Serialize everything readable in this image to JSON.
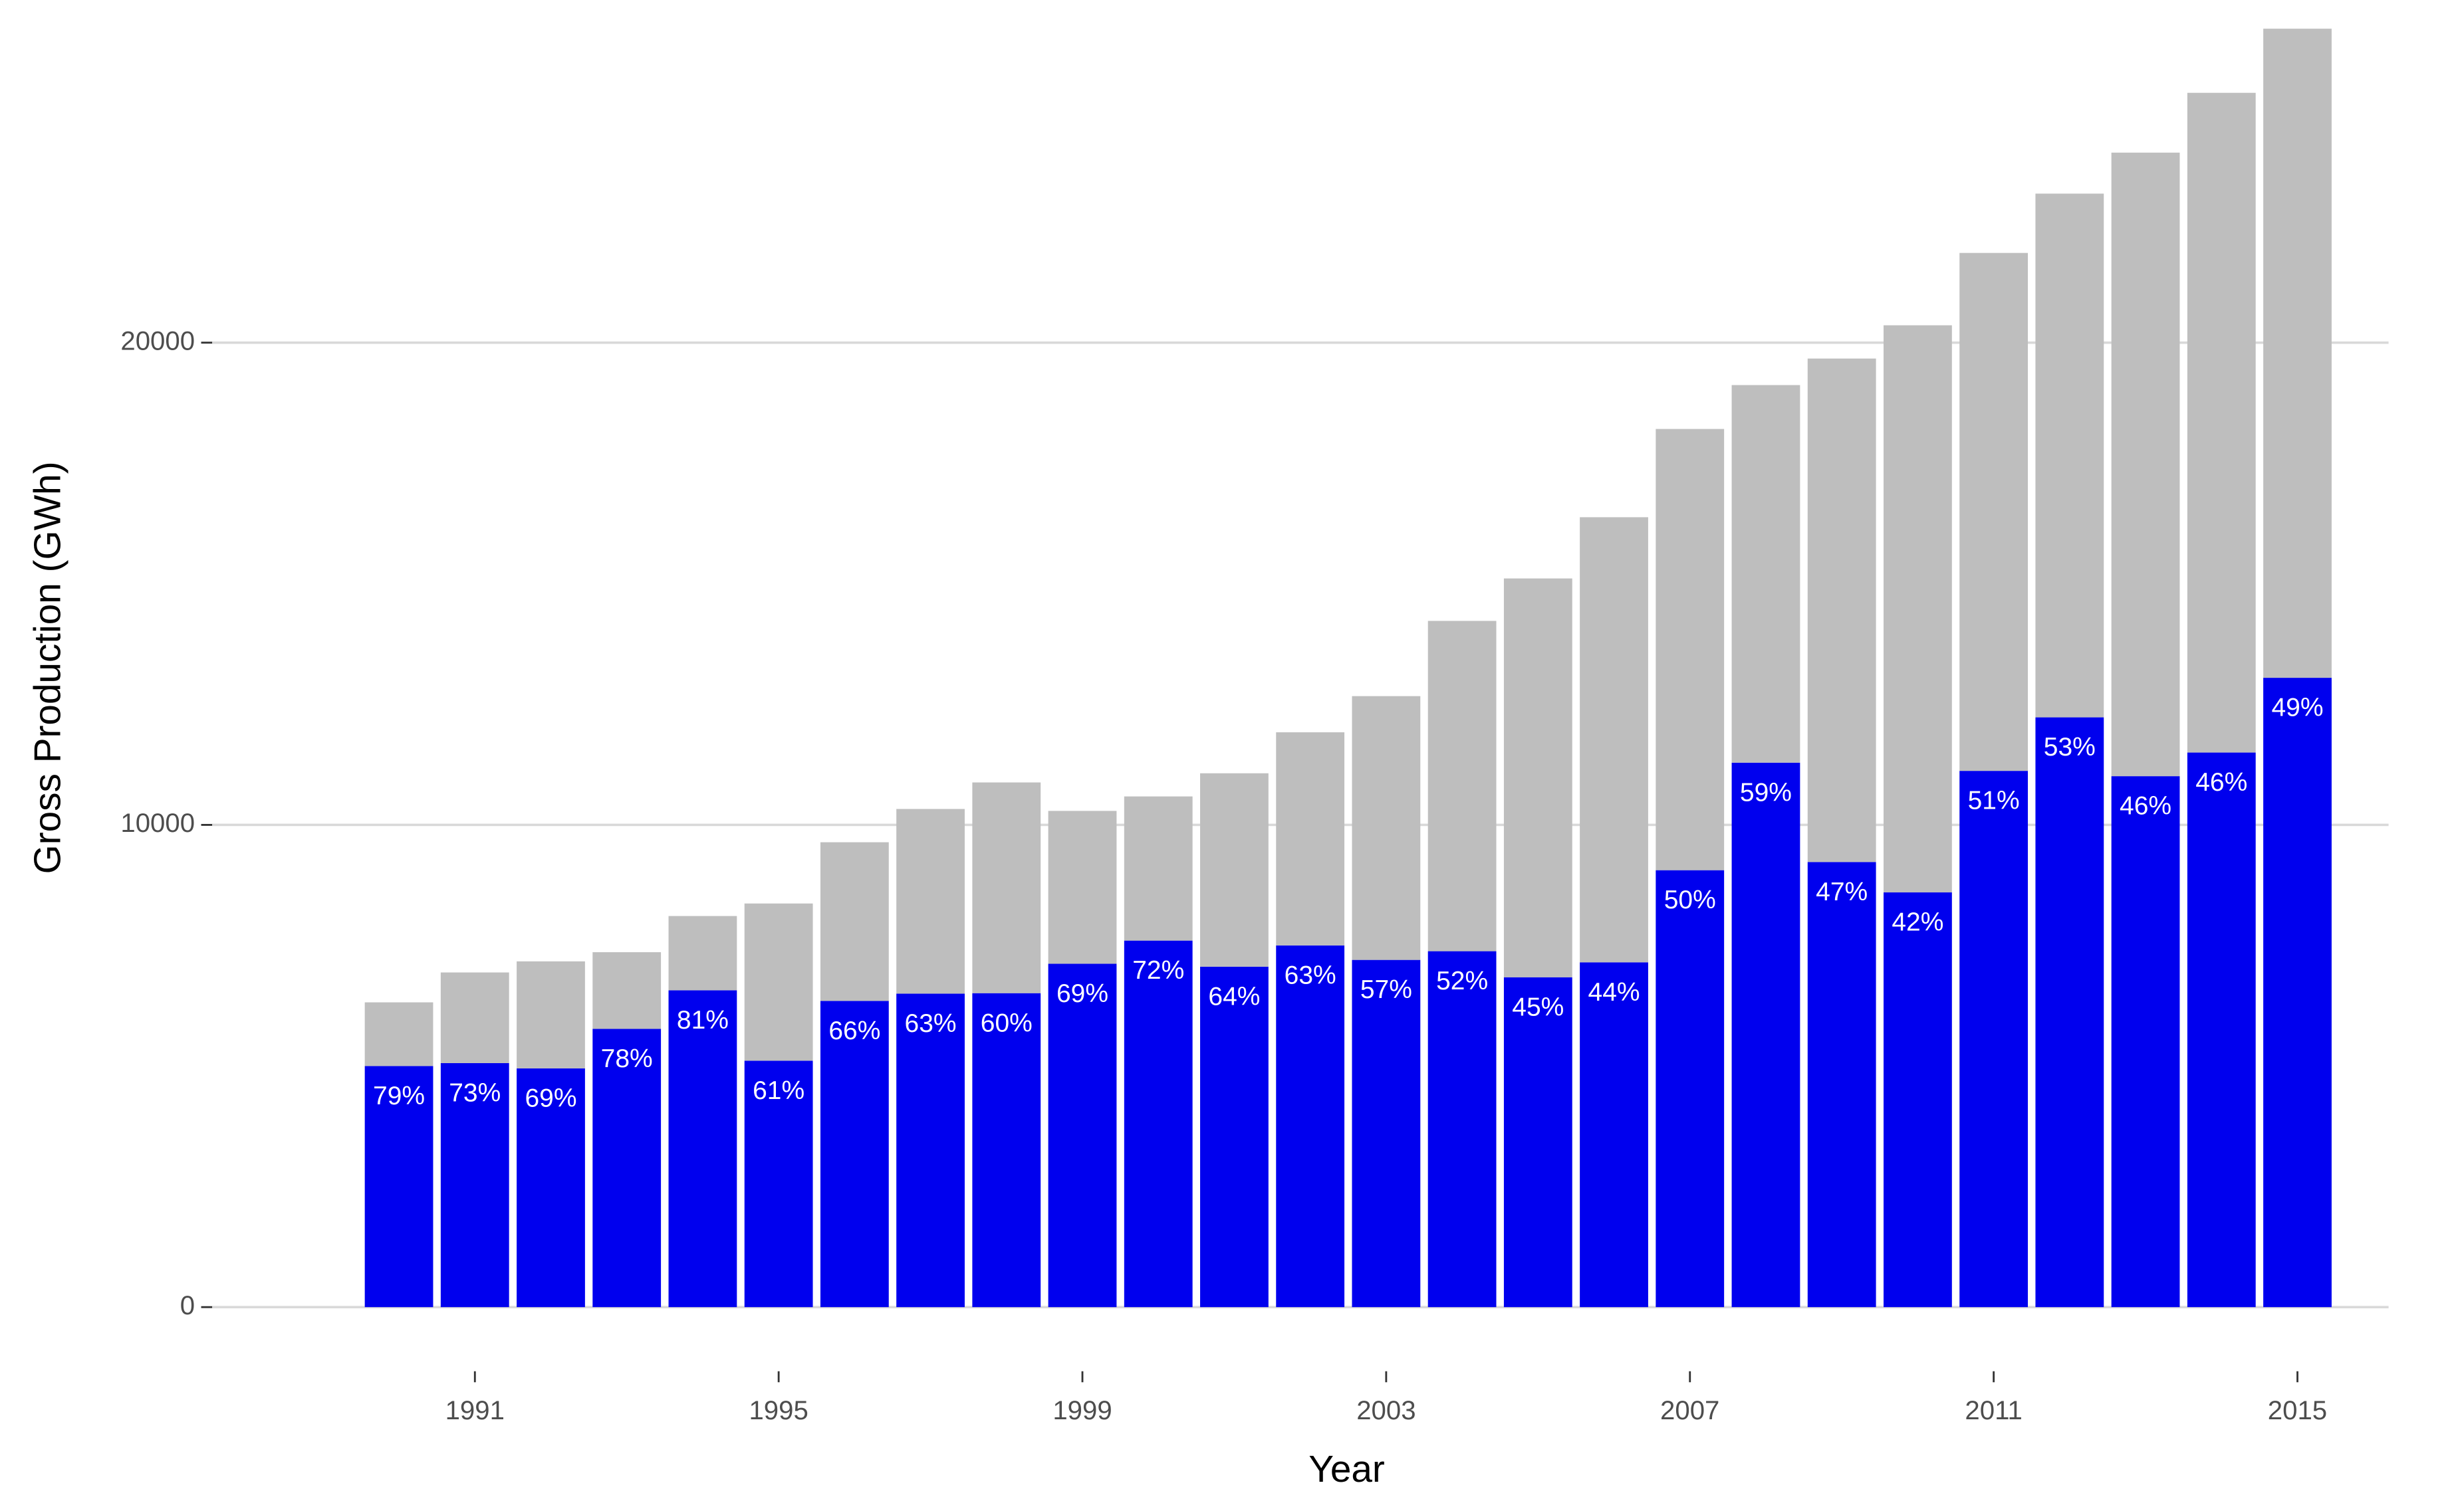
{
  "chart_data": {
    "type": "stacked_bar",
    "x_label": "Year",
    "y_label": "Gross Production (GWh)",
    "x": [
      1990,
      1991,
      1992,
      1993,
      1994,
      1995,
      1996,
      1997,
      1998,
      1999,
      2000,
      2001,
      2002,
      2003,
      2004,
      2005,
      2006,
      2007,
      2008,
      2009,
      2010,
      2011,
      2012,
      2013,
      2014,
      2015
    ],
    "series": [
      {
        "color": "#0000ee",
        "values": [
          5000,
          5060,
          4950,
          5770,
          6570,
          5110,
          6350,
          6500,
          6510,
          7120,
          7600,
          7060,
          7500,
          7200,
          7380,
          6840,
          7150,
          9060,
          11290,
          9230,
          8600,
          11120,
          12230,
          11010,
          11500,
          13050
        ],
        "bar_labels": [
          "79%",
          "73%",
          "69%",
          "78%",
          "81%",
          "61%",
          "66%",
          "63%",
          "60%",
          "69%",
          "72%",
          "64%",
          "63%",
          "57%",
          "52%",
          "45%",
          "44%",
          "50%",
          "59%",
          "47%",
          "42%",
          "51%",
          "53%",
          "46%",
          "46%",
          "49%"
        ]
      },
      {
        "color": "#bebebe",
        "values": [
          1320,
          1880,
          2220,
          1590,
          1540,
          3260,
          3290,
          3830,
          4370,
          3170,
          2990,
          4010,
          4420,
          5470,
          6850,
          8270,
          9230,
          9150,
          7830,
          10440,
          11760,
          10740,
          10860,
          12930,
          13680,
          13460
        ]
      }
    ],
    "xlim": [
      1987.54,
      2016.2
    ],
    "xticks": [
      1991,
      1995,
      1999,
      2003,
      2007,
      2011,
      2015
    ],
    "ylim": [
      -1330,
      27100
    ],
    "yticks": [
      0,
      10000,
      20000
    ],
    "grid": true
  }
}
